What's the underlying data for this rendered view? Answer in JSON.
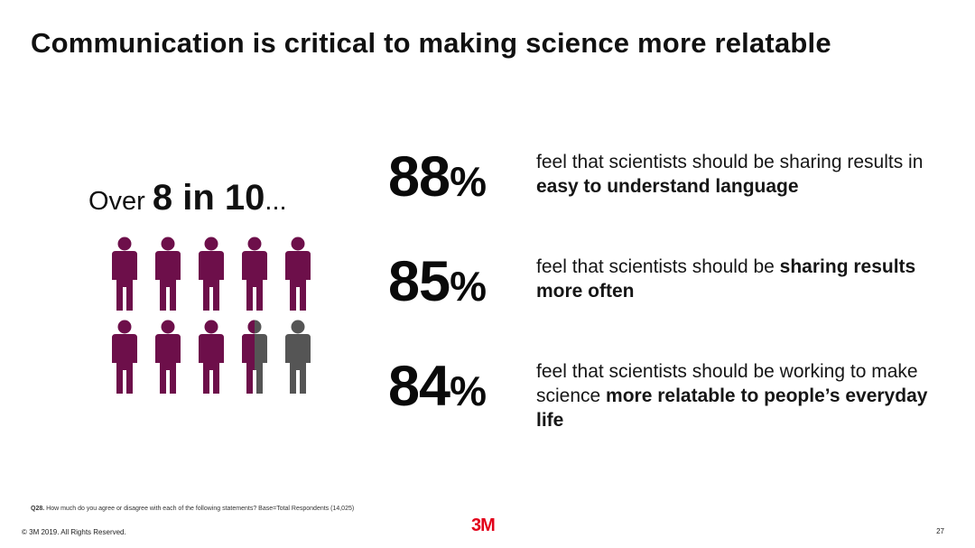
{
  "title": "Communication is critical to making science more relatable",
  "headline": {
    "prefix": "Over ",
    "emphasis": "8 in 10",
    "suffix": "..."
  },
  "figure_counts": {
    "total": 10,
    "filled": 8.5
  },
  "colors": {
    "accent": "#6d0f4a",
    "neutral": "#555555",
    "brand": "#e2001a"
  },
  "stats": [
    {
      "value": "88",
      "unit": "%",
      "parts": [
        {
          "text": "feel that scientists should be sharing results in ",
          "bold": false
        },
        {
          "text": "easy to understand language",
          "bold": true
        }
      ]
    },
    {
      "value": "85",
      "unit": "%",
      "parts": [
        {
          "text": "feel that scientists should be ",
          "bold": false
        },
        {
          "text": "sharing results more often",
          "bold": true
        }
      ]
    },
    {
      "value": "84",
      "unit": "%",
      "parts": [
        {
          "text": "feel that scientists should be working to make science ",
          "bold": false
        },
        {
          "text": "more relatable to people’s everyday life",
          "bold": true
        }
      ]
    }
  ],
  "footnote": {
    "label": "Q28.",
    "text": " How much do you agree or disagree with each of the following statements? Base=Total Respondents (14,025)"
  },
  "copyright": "© 3M 2019.   All Rights Reserved.",
  "logo": "3M",
  "page_number": "27"
}
